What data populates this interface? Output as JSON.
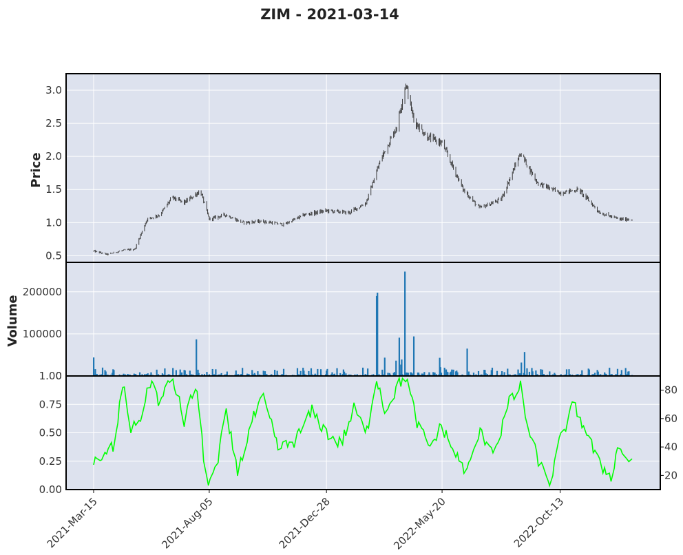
{
  "title": "ZIM - 2021-03-14",
  "colors": {
    "panel_background": "#dde2ee",
    "candle": "#3a3a3a",
    "volume": "#1f77b4",
    "indicator": "#00ff00"
  },
  "chart_data": [
    {
      "type": "candlestick",
      "ylabel": "Price",
      "ylim": [
        0.4,
        3.25
      ],
      "yticks": [
        "0.5",
        "1.0",
        "1.5",
        "2.0",
        "2.5",
        "3.0"
      ],
      "x_tick_labels": [
        "2021-Mar-15",
        "2021-Aug-05",
        "2021-Dec-28",
        "2022-May-20",
        "2022-Oct-13"
      ],
      "x_range": [
        "2021-03-15",
        "2023-01-10"
      ],
      "grid": true,
      "approx_close_path": [
        [
          "2021-03-15",
          0.57
        ],
        [
          "2021-04-01",
          0.52
        ],
        [
          "2021-04-20",
          0.58
        ],
        [
          "2021-05-05",
          0.6
        ],
        [
          "2021-05-20",
          1.05
        ],
        [
          "2021-06-05",
          1.12
        ],
        [
          "2021-06-20",
          1.38
        ],
        [
          "2021-07-05",
          1.3
        ],
        [
          "2021-07-25",
          1.48
        ],
        [
          "2021-08-05",
          1.05
        ],
        [
          "2021-08-25",
          1.12
        ],
        [
          "2021-09-15",
          1.0
        ],
        [
          "2021-10-10",
          1.02
        ],
        [
          "2021-11-05",
          0.97
        ],
        [
          "2021-12-01",
          1.12
        ],
        [
          "2021-12-28",
          1.18
        ],
        [
          "2022-01-25",
          1.15
        ],
        [
          "2022-02-15",
          1.3
        ],
        [
          "2022-03-05",
          1.95
        ],
        [
          "2022-03-25",
          2.45
        ],
        [
          "2022-04-05",
          3.1
        ],
        [
          "2022-04-15",
          2.55
        ],
        [
          "2022-05-01",
          2.3
        ],
        [
          "2022-05-20",
          2.2
        ],
        [
          "2022-06-15",
          1.5
        ],
        [
          "2022-07-05",
          1.22
        ],
        [
          "2022-08-01",
          1.35
        ],
        [
          "2022-08-25",
          2.05
        ],
        [
          "2022-09-15",
          1.6
        ],
        [
          "2022-10-13",
          1.45
        ],
        [
          "2022-11-05",
          1.5
        ],
        [
          "2022-12-01",
          1.15
        ],
        [
          "2022-12-25",
          1.05
        ]
      ]
    },
    {
      "type": "bar",
      "ylabel": "Volume",
      "ylim": [
        0,
        270000
      ],
      "yticks": [
        "0",
        "100000",
        "200000"
      ],
      "grid": true,
      "notable_bars": [
        [
          "2021-03-15",
          44000
        ],
        [
          "2021-07-20",
          87000
        ],
        [
          "2022-02-28",
          190000
        ],
        [
          "2022-03-01",
          198000
        ],
        [
          "2022-03-05",
          130000
        ],
        [
          "2022-04-04",
          248000
        ],
        [
          "2022-03-28",
          91000
        ],
        [
          "2022-04-15",
          94000
        ],
        [
          "2022-06-20",
          65000
        ],
        [
          "2022-08-30",
          57000
        ]
      ],
      "typical_volume": 8000
    },
    {
      "type": "line",
      "ylim_left": [
        0.0,
        1.0
      ],
      "yticks_left": [
        "0.00",
        "0.25",
        "0.50",
        "0.75",
        "1.00"
      ],
      "ylim_right": [
        10,
        90
      ],
      "yticks_right": [
        "20",
        "40",
        "60",
        "80"
      ],
      "grid": true,
      "approx_path": [
        [
          "2021-03-15",
          30
        ],
        [
          "2021-03-25",
          28
        ],
        [
          "2021-04-01",
          38
        ],
        [
          "2021-04-10",
          40
        ],
        [
          "2021-04-20",
          85
        ],
        [
          "2021-05-01",
          50
        ],
        [
          "2021-05-15",
          65
        ],
        [
          "2021-05-25",
          88
        ],
        [
          "2021-06-05",
          70
        ],
        [
          "2021-06-20",
          90
        ],
        [
          "2021-07-05",
          58
        ],
        [
          "2021-07-20",
          85
        ],
        [
          "2021-08-01",
          15
        ],
        [
          "2021-08-15",
          25
        ],
        [
          "2021-08-25",
          65
        ],
        [
          "2021-09-10",
          22
        ],
        [
          "2021-09-25",
          55
        ],
        [
          "2021-10-10",
          75
        ],
        [
          "2021-10-30",
          38
        ],
        [
          "2021-11-20",
          45
        ],
        [
          "2021-12-10",
          65
        ],
        [
          "2021-12-28",
          50
        ],
        [
          "2022-01-15",
          42
        ],
        [
          "2022-02-01",
          68
        ],
        [
          "2022-02-15",
          48
        ],
        [
          "2022-02-28",
          90
        ],
        [
          "2022-03-10",
          65
        ],
        [
          "2022-03-25",
          82
        ],
        [
          "2022-04-05",
          90
        ],
        [
          "2022-04-20",
          55
        ],
        [
          "2022-05-05",
          40
        ],
        [
          "2022-05-20",
          55
        ],
        [
          "2022-06-05",
          35
        ],
        [
          "2022-06-20",
          22
        ],
        [
          "2022-07-05",
          50
        ],
        [
          "2022-07-25",
          38
        ],
        [
          "2022-08-10",
          70
        ],
        [
          "2022-08-25",
          82
        ],
        [
          "2022-09-05",
          48
        ],
        [
          "2022-09-20",
          25
        ],
        [
          "2022-10-01",
          15
        ],
        [
          "2022-10-13",
          45
        ],
        [
          "2022-10-30",
          70
        ],
        [
          "2022-11-15",
          50
        ],
        [
          "2022-11-30",
          28
        ],
        [
          "2022-12-15",
          20
        ],
        [
          "2022-12-25",
          42
        ],
        [
          "2023-01-05",
          30
        ]
      ]
    }
  ]
}
